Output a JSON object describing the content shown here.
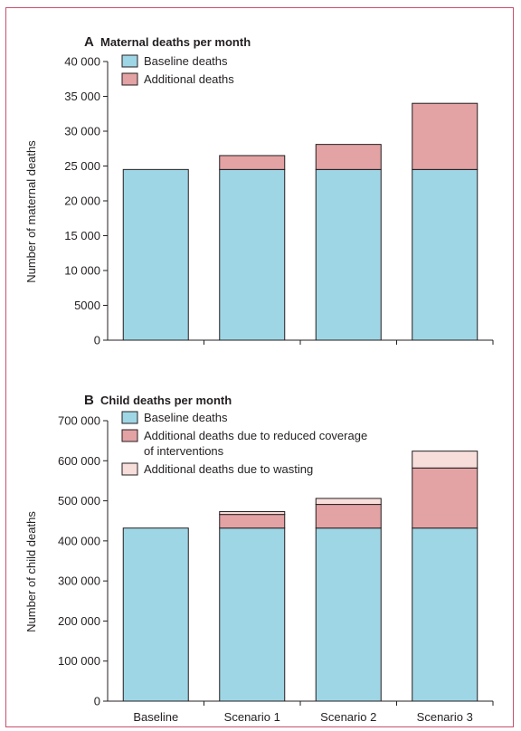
{
  "colors": {
    "baseline": "#9fd6e5",
    "additional": "#e3a2a4",
    "wasting": "#f8dedb",
    "frame": "#c8506e"
  },
  "chart_data": [
    {
      "type": "bar",
      "stacked": true,
      "letter": "A",
      "title": "Maternal deaths per month",
      "ylabel": "Number of maternal deaths",
      "xlabel": "",
      "categories": [
        "Baseline",
        "Scenario 1",
        "Scenario 2",
        "Scenario 3"
      ],
      "ylim": [
        0,
        40000
      ],
      "yticks": [
        0,
        5000,
        10000,
        15000,
        20000,
        25000,
        30000,
        35000,
        40000
      ],
      "ytick_labels": [
        "0",
        "5000",
        "10 000",
        "15 000",
        "20 000",
        "25 000",
        "30 000",
        "35 000",
        "40 000"
      ],
      "legend_position": "top-left",
      "series": [
        {
          "name": "Baseline deaths",
          "color": "#9fd6e5",
          "values": [
            24500,
            24500,
            24500,
            24500
          ]
        },
        {
          "name": "Additional deaths",
          "color": "#e3a2a4",
          "values": [
            0,
            2000,
            3600,
            9500
          ]
        }
      ]
    },
    {
      "type": "bar",
      "stacked": true,
      "letter": "B",
      "title": "Child deaths per month",
      "ylabel": "Number of child deaths",
      "xlabel": "",
      "categories": [
        "Baseline",
        "Scenario 1",
        "Scenario 2",
        "Scenario 3"
      ],
      "ylim": [
        0,
        700000
      ],
      "yticks": [
        0,
        100000,
        200000,
        300000,
        400000,
        500000,
        600000,
        700000
      ],
      "ytick_labels": [
        "0",
        "100 000",
        "200 000",
        "300 000",
        "400 000",
        "500 000",
        "600 000",
        "700 000"
      ],
      "legend_position": "top-left",
      "series": [
        {
          "name": "Baseline deaths",
          "color": "#9fd6e5",
          "values": [
            432000,
            432000,
            432000,
            432000
          ]
        },
        {
          "name": "Additional deaths due to reduced coverage of interventions",
          "legend_lines": [
            "Additional deaths due to reduced coverage",
            "of interventions"
          ],
          "color": "#e3a2a4",
          "values": [
            0,
            34000,
            59000,
            150000
          ]
        },
        {
          "name": "Additional deaths due to wasting",
          "color": "#f8dedb",
          "values": [
            0,
            7000,
            15000,
            42000
          ]
        }
      ]
    }
  ]
}
